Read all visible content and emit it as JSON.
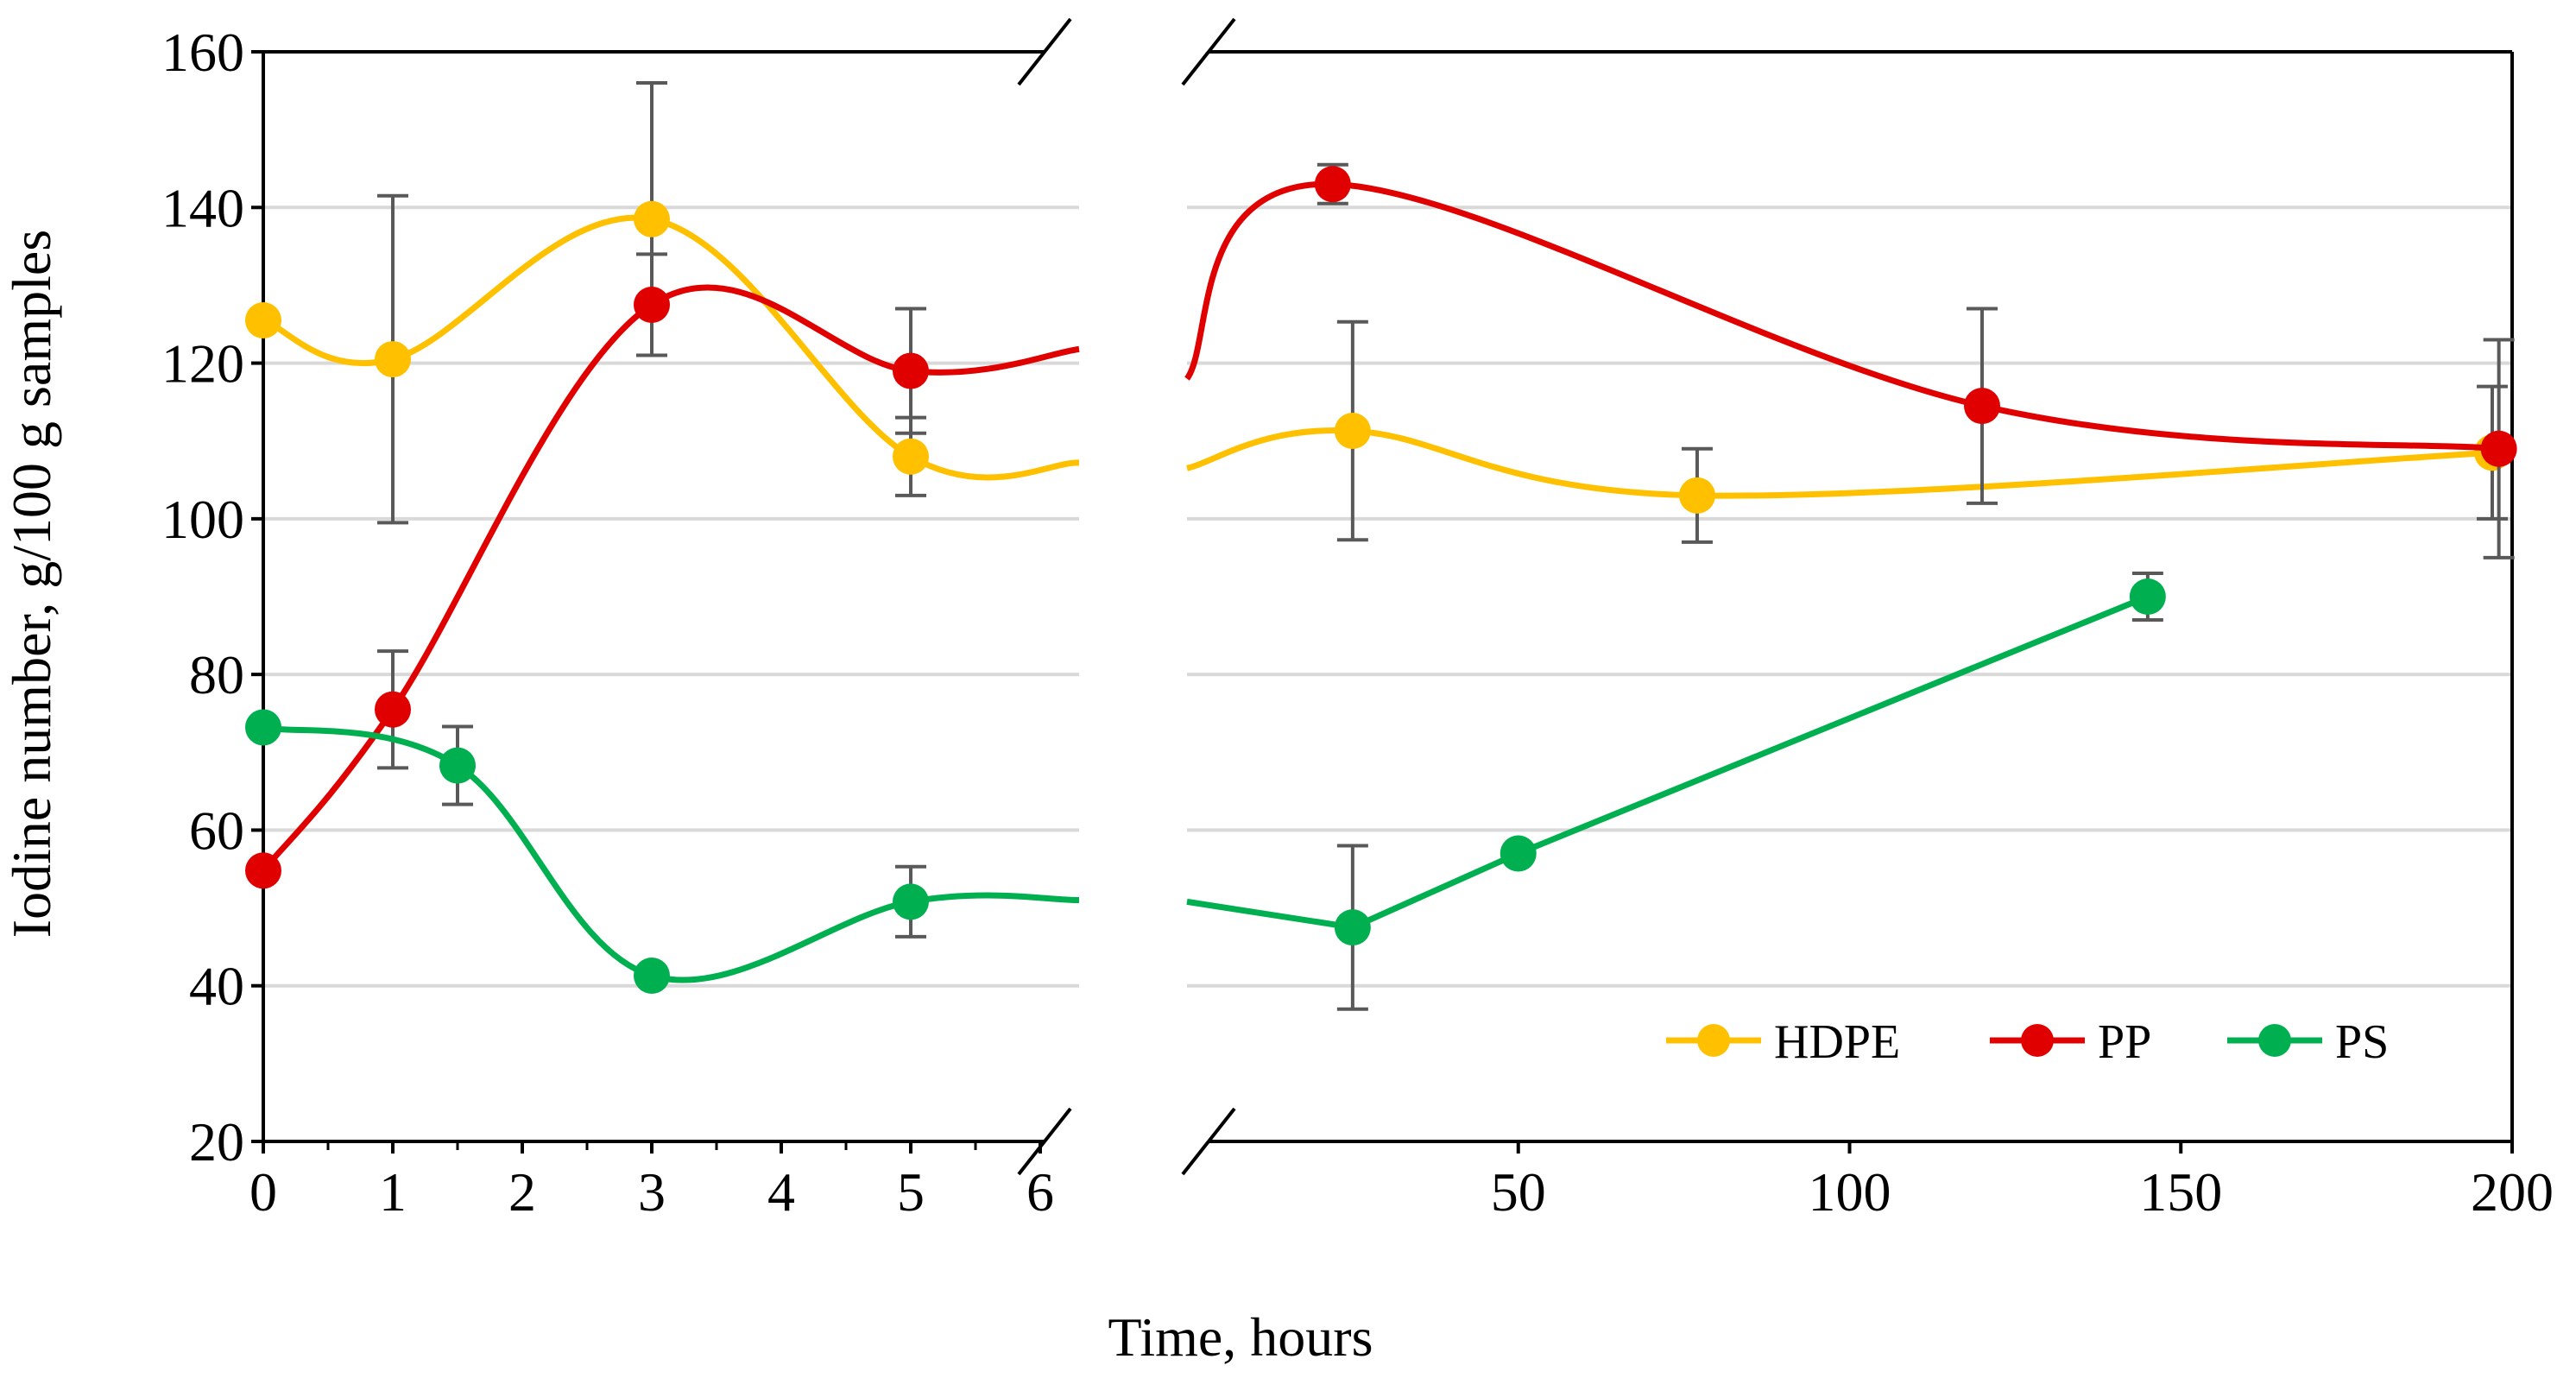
{
  "chart_data": {
    "type": "line",
    "title": "",
    "xlabel": "Time, hours",
    "ylabel": "Iodine number, g/100 g samples",
    "ylim": [
      20,
      160
    ],
    "yticks": [
      "20",
      "40",
      "60",
      "80",
      "100",
      "120",
      "140",
      "160"
    ],
    "panels": [
      {
        "name": "left",
        "xlim": [
          0,
          6.3
        ],
        "xticks": [
          "0",
          "1",
          "2",
          "3",
          "4",
          "5",
          "6"
        ]
      },
      {
        "name": "right",
        "xlim": [
          0,
          200
        ],
        "xticks": [
          "50",
          "100",
          "150",
          "200"
        ]
      }
    ],
    "grid": true,
    "legend_position": "bottom-right",
    "series": [
      {
        "name": "HDPE",
        "color": "#FFC000",
        "left": {
          "x": [
            0,
            1,
            3,
            5
          ],
          "y": [
            125.5,
            120.5,
            138.5,
            108.0
          ],
          "err": [
            0,
            21,
            17.5,
            5
          ],
          "tail": [
            [
              6.3,
              107.2
            ]
          ]
        },
        "right": {
          "head": [
            [
              0,
              106.5
            ]
          ],
          "x": [
            25,
            77,
            197
          ],
          "y": [
            111.3,
            103.0,
            108.5
          ],
          "err": [
            14,
            6,
            8.5
          ]
        }
      },
      {
        "name": "PP",
        "color": "#E00000",
        "left": {
          "x": [
            0,
            1,
            3,
            5
          ],
          "y": [
            54.8,
            75.5,
            127.5,
            119.0
          ],
          "err": [
            0,
            7.5,
            6.5,
            8
          ],
          "tail": [
            [
              6.3,
              121.8
            ]
          ]
        },
        "right": {
          "head": [
            [
              0,
              118.0
            ]
          ],
          "x": [
            22,
            120,
            198
          ],
          "y": [
            143.0,
            114.5,
            109.0
          ],
          "err": [
            2.5,
            12.5,
            14
          ]
        }
      },
      {
        "name": "PS",
        "color": "#00B050",
        "left": {
          "x": [
            0,
            1.5,
            3,
            5
          ],
          "y": [
            73.2,
            68.3,
            41.3,
            50.8
          ],
          "err": [
            0,
            5,
            0,
            4.5
          ],
          "tail": [
            [
              6.3,
              51.0
            ]
          ]
        },
        "right": {
          "head": [
            [
              0,
              50.8
            ]
          ],
          "x": [
            25,
            50,
            145
          ],
          "y": [
            47.5,
            57.0,
            90.0
          ],
          "err": [
            10.5,
            0,
            3
          ]
        }
      }
    ]
  }
}
